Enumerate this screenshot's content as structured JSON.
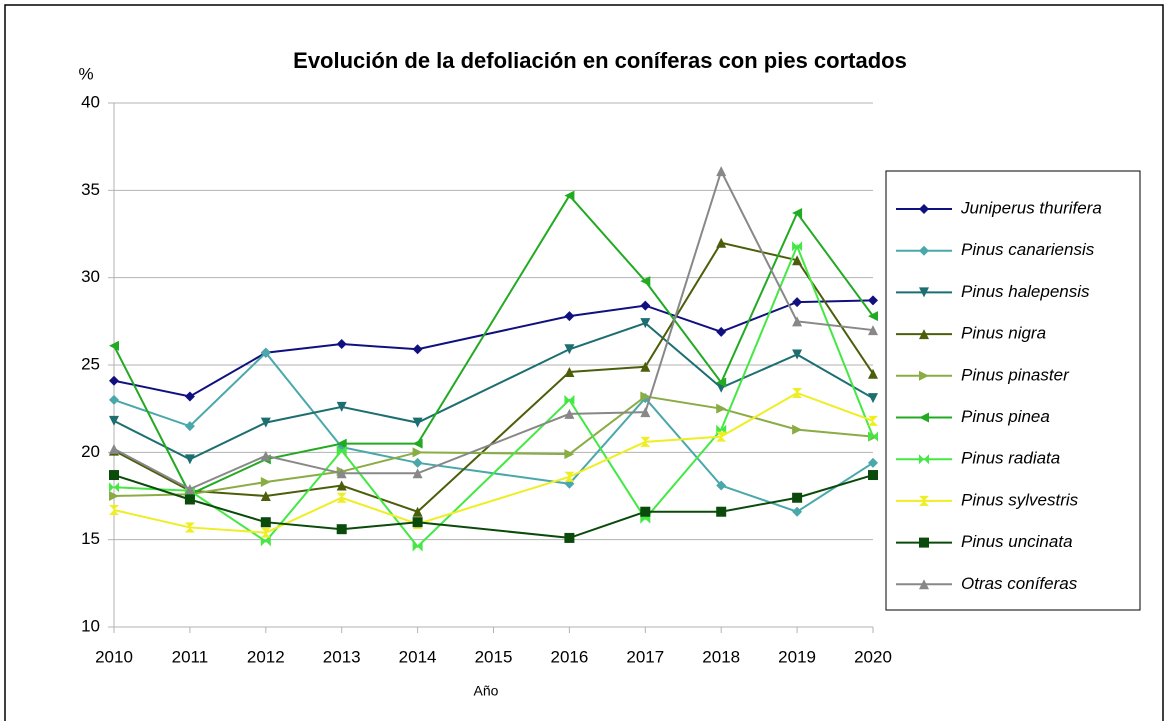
{
  "chart_data": {
    "type": "line",
    "title": "Evolución de la defoliación en coníferas con pies cortados",
    "y_label": "%",
    "x_label": "Año",
    "x": [
      2010,
      2011,
      2012,
      2013,
      2014,
      2016,
      2017,
      2018,
      2019,
      2020
    ],
    "xlim": [
      2010,
      2020
    ],
    "xticks": [
      2010,
      2011,
      2012,
      2013,
      2014,
      2015,
      2016,
      2017,
      2018,
      2019,
      2020
    ],
    "ylim": [
      10,
      40
    ],
    "yticks": [
      10,
      15,
      20,
      25,
      30,
      35,
      40
    ],
    "grid": true,
    "legend": "right",
    "series": [
      {
        "name": "Juniperus thurifera",
        "color": "#101080",
        "marker": "diamond",
        "values": [
          24.1,
          23.2,
          25.7,
          26.2,
          25.9,
          27.8,
          28.4,
          26.9,
          28.6,
          28.7
        ]
      },
      {
        "name": "Pinus canariensis",
        "color": "#4aa8aa",
        "marker": "diamond",
        "values": [
          23.0,
          21.5,
          25.7,
          20.3,
          19.4,
          18.2,
          23.1,
          18.1,
          16.6,
          19.4
        ]
      },
      {
        "name": "Pinus halepensis",
        "color": "#1c6e70",
        "marker": "triangle-down",
        "values": [
          21.8,
          19.6,
          21.7,
          22.6,
          21.7,
          25.9,
          27.4,
          23.7,
          25.6,
          23.1
        ]
      },
      {
        "name": "Pinus nigra",
        "color": "#4b5e0a",
        "marker": "triangle-up",
        "values": [
          20.1,
          17.8,
          17.5,
          18.1,
          16.6,
          24.6,
          24.9,
          32.0,
          31.0,
          24.5
        ]
      },
      {
        "name": "Pinus pinaster",
        "color": "#8aac44",
        "marker": "triangle-right",
        "values": [
          17.5,
          17.6,
          18.3,
          18.9,
          20.0,
          19.9,
          23.2,
          22.5,
          21.3,
          20.9
        ]
      },
      {
        "name": "Pinus pinea",
        "color": "#22aa22",
        "marker": "triangle-left",
        "values": [
          26.1,
          17.6,
          19.6,
          20.5,
          20.5,
          34.7,
          29.8,
          24.0,
          33.7,
          27.8
        ]
      },
      {
        "name": "Pinus radiata",
        "color": "#44e844",
        "marker": "bowtie",
        "values": [
          18.0,
          17.8,
          14.9,
          20.1,
          14.6,
          23.0,
          16.2,
          21.3,
          31.8,
          20.9
        ]
      },
      {
        "name": "Pinus sylvestris",
        "color": "#eeee22",
        "marker": "hourglass",
        "values": [
          16.7,
          15.7,
          15.4,
          17.4,
          15.9,
          18.6,
          20.6,
          20.9,
          23.4,
          21.8
        ]
      },
      {
        "name": "Pinus uncinata",
        "color": "#0a4a0a",
        "marker": "square",
        "values": [
          18.7,
          17.3,
          16.0,
          15.6,
          16.0,
          15.1,
          16.6,
          16.6,
          17.4,
          18.7
        ]
      },
      {
        "name": "Otras coníferas",
        "color": "#888888",
        "marker": "triangle-up",
        "values": [
          20.2,
          17.9,
          19.8,
          18.8,
          18.8,
          22.2,
          22.3,
          36.1,
          27.5,
          27.0
        ]
      }
    ]
  }
}
